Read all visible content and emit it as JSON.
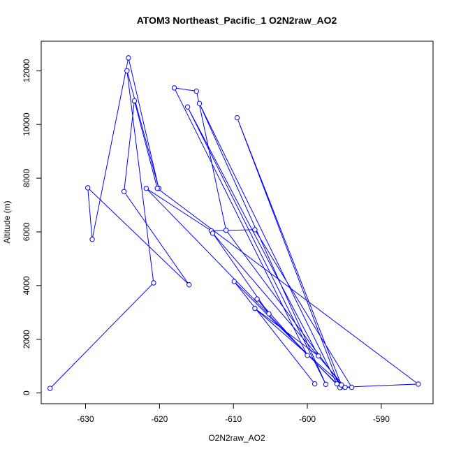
{
  "chart_data": {
    "type": "line",
    "title": "ATOM3 Northeast_Pacific_1 O2N2raw_AO2",
    "xlabel": "O2N2raw_AO2",
    "ylabel": "Altitude (m)",
    "xlim": [
      -636,
      -583
    ],
    "ylim": [
      -400,
      13100
    ],
    "xticks": [
      -630,
      -620,
      -610,
      -600,
      -590
    ],
    "yticks": [
      0,
      2000,
      4000,
      6000,
      8000,
      10000,
      12000
    ],
    "grid": false,
    "series": [
      {
        "color": "#0000ff",
        "marker": "open-circle",
        "x": [
          -634.8,
          -620.8,
          -624.4,
          -620.1,
          -624.2,
          -629.1,
          -629.7,
          -616.0,
          -624.8,
          -623.4,
          -620.3,
          -585.0,
          -595.5,
          -594.0,
          -607.1,
          -613.0,
          -621.8,
          -595.6,
          -609.5,
          -595.4,
          -611.0,
          -615.0,
          -618.0,
          -600.0,
          -606.8,
          -605.2,
          -612.8,
          -594.9,
          -607.1,
          -598.5,
          -616.2,
          -597.5,
          -614.6,
          -596.0,
          -609.9,
          -599.0
        ],
        "y": [
          170,
          4100,
          12000,
          7620,
          12480,
          5720,
          7640,
          4030,
          7500,
          10880,
          7620,
          330,
          210,
          210,
          6080,
          6040,
          7620,
          200,
          10250,
          300,
          6060,
          11240,
          11360,
          1400,
          3500,
          2950,
          5950,
          210,
          3150,
          1380,
          10650,
          320,
          10780,
          340,
          4150,
          340
        ]
      }
    ]
  }
}
